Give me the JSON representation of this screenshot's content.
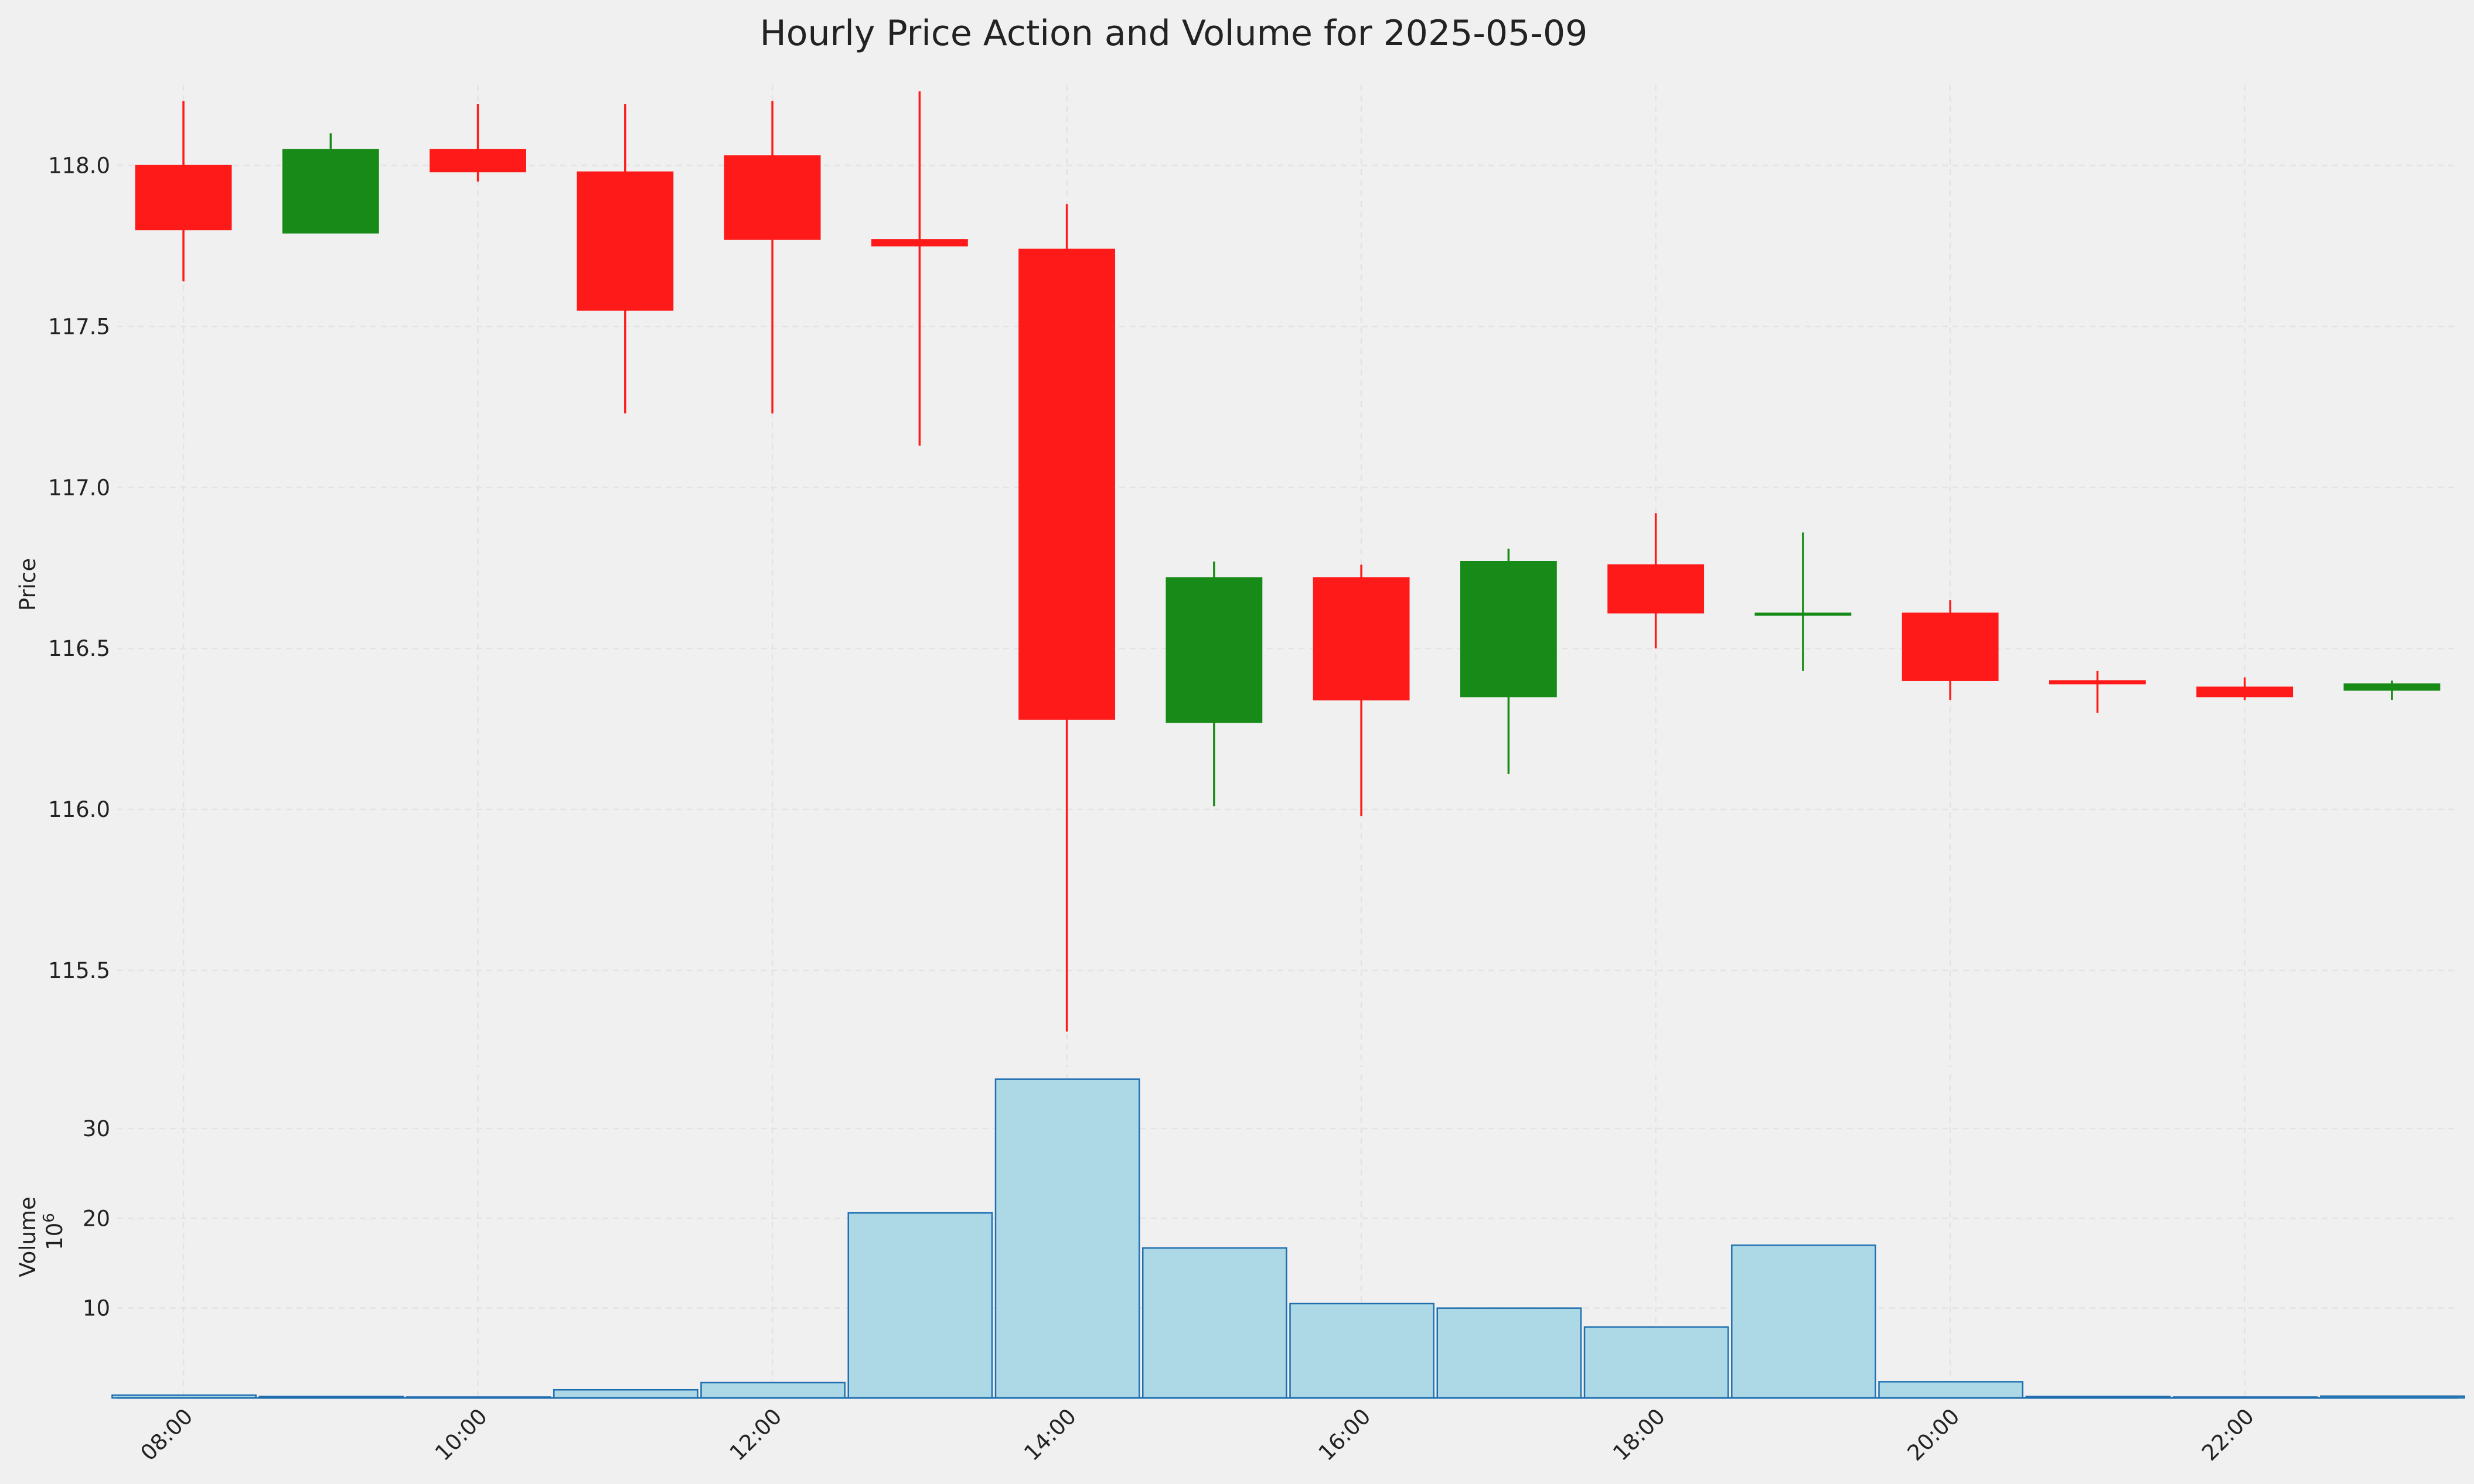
{
  "chart_data": {
    "type": "candlestick",
    "title": "Hourly Price Action and Volume for 2025-05-09",
    "colors": {
      "up": "#178a17",
      "down": "#ff1a1a",
      "volume_fill": "#add8e6",
      "volume_edge": "#1f6fb0"
    },
    "price_panel": {
      "ylabel": "Price",
      "ylim": [
        115.2,
        118.25
      ],
      "yticks": [
        {
          "v": 115.5,
          "label": "115.5"
        },
        {
          "v": 116.0,
          "label": "116.0"
        },
        {
          "v": 116.5,
          "label": "116.5"
        },
        {
          "v": 117.0,
          "label": "117.0"
        },
        {
          "v": 117.5,
          "label": "117.5"
        },
        {
          "v": 118.0,
          "label": "118.0"
        }
      ]
    },
    "volume_panel": {
      "ylabel": "Volume",
      "scale_label": "10",
      "scale_exp": "6",
      "ylim": [
        0,
        36
      ],
      "yticks": [
        {
          "v": 10,
          "label": "10"
        },
        {
          "v": 20,
          "label": "20"
        },
        {
          "v": 30,
          "label": "30"
        }
      ]
    },
    "xlim": [
      7.55,
      23.45
    ],
    "xticks": [
      {
        "v": 8,
        "label": "08:00"
      },
      {
        "v": 10,
        "label": "10:00"
      },
      {
        "v": 12,
        "label": "12:00"
      },
      {
        "v": 14,
        "label": "14:00"
      },
      {
        "v": 16,
        "label": "16:00"
      },
      {
        "v": 18,
        "label": "18:00"
      },
      {
        "v": 20,
        "label": "20:00"
      },
      {
        "v": 22,
        "label": "22:00"
      }
    ],
    "candles": [
      {
        "hour": 8,
        "open": 118.0,
        "high": 118.2,
        "low": 117.64,
        "close": 117.8,
        "volume": 0.3
      },
      {
        "hour": 9,
        "open": 117.79,
        "high": 118.1,
        "low": 117.79,
        "close": 118.05,
        "volume": 0.15
      },
      {
        "hour": 10,
        "open": 118.05,
        "high": 118.19,
        "low": 117.95,
        "close": 117.98,
        "volume": 0.1
      },
      {
        "hour": 11,
        "open": 117.98,
        "high": 118.19,
        "low": 117.23,
        "close": 117.55,
        "volume": 0.9
      },
      {
        "hour": 12,
        "open": 118.03,
        "high": 118.2,
        "low": 117.23,
        "close": 117.77,
        "volume": 1.7
      },
      {
        "hour": 13,
        "open": 117.77,
        "high": 118.23,
        "low": 117.13,
        "close": 117.75,
        "volume": 20.6
      },
      {
        "hour": 14,
        "open": 117.74,
        "high": 117.88,
        "low": 115.31,
        "close": 116.28,
        "volume": 35.5
      },
      {
        "hour": 15,
        "open": 116.27,
        "high": 116.77,
        "low": 116.01,
        "close": 116.72,
        "volume": 16.7
      },
      {
        "hour": 16,
        "open": 116.72,
        "high": 116.76,
        "low": 115.98,
        "close": 116.34,
        "volume": 10.5
      },
      {
        "hour": 17,
        "open": 116.35,
        "high": 116.81,
        "low": 116.11,
        "close": 116.77,
        "volume": 10.0
      },
      {
        "hour": 18,
        "open": 116.76,
        "high": 116.92,
        "low": 116.5,
        "close": 116.61,
        "volume": 7.9
      },
      {
        "hour": 19,
        "open": 116.61,
        "high": 116.86,
        "low": 116.43,
        "close": 116.61,
        "volume": 17.0
      },
      {
        "hour": 20,
        "open": 116.61,
        "high": 116.65,
        "low": 116.34,
        "close": 116.4,
        "volume": 1.8
      },
      {
        "hour": 21,
        "open": 116.4,
        "high": 116.43,
        "low": 116.3,
        "close": 116.39,
        "volume": 0.15
      },
      {
        "hour": 22,
        "open": 116.38,
        "high": 116.41,
        "low": 116.34,
        "close": 116.35,
        "volume": 0.1
      },
      {
        "hour": 23,
        "open": 116.37,
        "high": 116.4,
        "low": 116.34,
        "close": 116.39,
        "volume": 0.2
      }
    ]
  }
}
